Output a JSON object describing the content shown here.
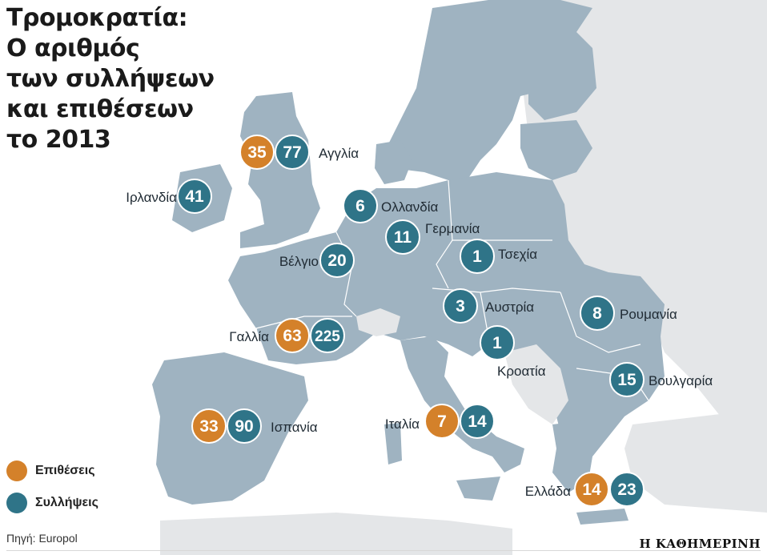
{
  "title": {
    "line1": "Τρομοκρατία:",
    "line2": "Ο αριθμός",
    "line3": "των συλλήψεων",
    "line4": "και επιθέσεων",
    "line5": "το 2013"
  },
  "colors": {
    "attacks": "#d4812a",
    "arrests": "#2f7488",
    "land": "#9fb3c1",
    "other_land": "#e4e6e8",
    "sea": "#ffffff",
    "border": "#ffffff"
  },
  "legend": {
    "attacks_label": "Επιθέσεις",
    "arrests_label": "Συλλήψεις"
  },
  "source": "Πηγή: Europol",
  "brand": "Η ΚΑΘΗΜΕΡΙΝΗ",
  "countries": [
    {
      "name": "Αγγλία",
      "attacks": "35",
      "arrests": "77"
    },
    {
      "name": "Ιρλανδία",
      "attacks": null,
      "arrests": "41"
    },
    {
      "name": "Ολλανδία",
      "attacks": null,
      "arrests": "6"
    },
    {
      "name": "Γερμανία",
      "attacks": null,
      "arrests": "11"
    },
    {
      "name": "Τσεχία",
      "attacks": null,
      "arrests": "1"
    },
    {
      "name": "Βέλγιο",
      "attacks": null,
      "arrests": "20"
    },
    {
      "name": "Αυστρία",
      "attacks": null,
      "arrests": "3"
    },
    {
      "name": "Ρουμανία",
      "attacks": null,
      "arrests": "8"
    },
    {
      "name": "Γαλλία",
      "attacks": "63",
      "arrests": "225"
    },
    {
      "name": "Κροατία",
      "attacks": null,
      "arrests": "1"
    },
    {
      "name": "Βουλγαρία",
      "attacks": null,
      "arrests": "15"
    },
    {
      "name": "Ισπανία",
      "attacks": "33",
      "arrests": "90"
    },
    {
      "name": "Ιταλία",
      "attacks": "7",
      "arrests": "14"
    },
    {
      "name": "Ελλάδα",
      "attacks": "14",
      "arrests": "23"
    }
  ]
}
